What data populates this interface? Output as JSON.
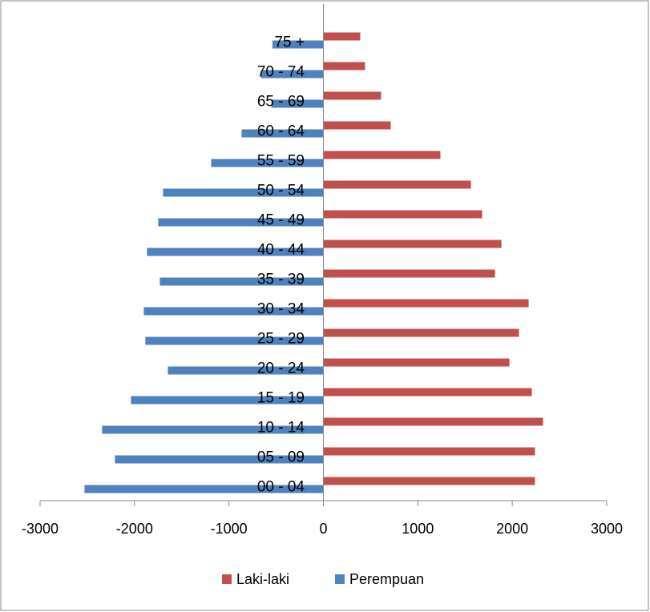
{
  "chart_data": {
    "type": "bar",
    "orientation": "horizontal",
    "categories": [
      "00 - 04",
      "05 - 09",
      "10 - 14",
      "15 - 19",
      "20 - 24",
      "25 - 29",
      "30 - 34",
      "35 - 39",
      "40 - 44",
      "45 - 49",
      "50 - 54",
      "55 - 59",
      "60 - 64",
      "65 - 69",
      "70 - 74",
      "75 +"
    ],
    "series": [
      {
        "name": "Laki-laki",
        "color": "#c0504d",
        "values": [
          2240,
          2240,
          2326,
          2207,
          1970,
          2071,
          2173,
          1817,
          1885,
          1681,
          1562,
          1239,
          713,
          611,
          441,
          390
        ]
      },
      {
        "name": "Perempuan",
        "color": "#4f81bd",
        "values": [
          -2530,
          -2207,
          -2343,
          -2037,
          -1647,
          -1885,
          -1902,
          -1732,
          -1868,
          -1749,
          -1698,
          -1188,
          -866,
          -550,
          -660,
          -540
        ]
      }
    ],
    "xlim": [
      -3000,
      3000
    ],
    "xticks": [
      -3000,
      -2000,
      -1000,
      0,
      1000,
      2000,
      3000
    ],
    "legend": "bottom"
  }
}
